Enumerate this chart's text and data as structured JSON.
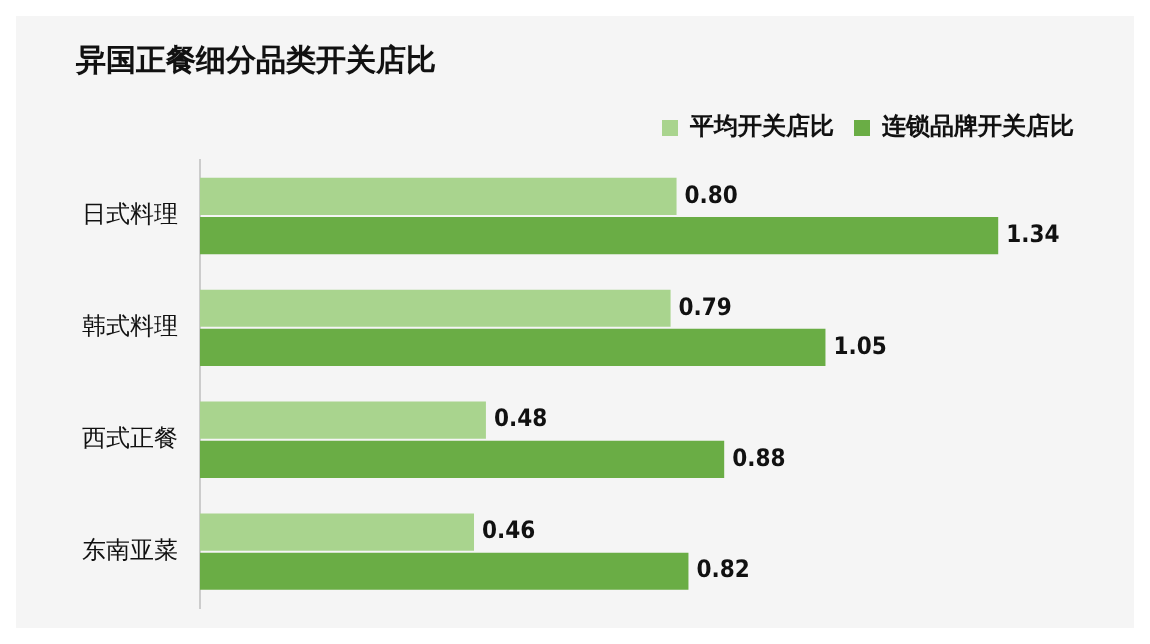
{
  "chart_data": {
    "type": "bar",
    "orientation": "horizontal",
    "title": "异国正餐细分品类开关店比",
    "categories": [
      "日式料理",
      "韩式料理",
      "西式正餐",
      "东南亚菜"
    ],
    "series": [
      {
        "name": "平均开关店比",
        "color": "#a9d48e",
        "values": [
          0.8,
          0.79,
          0.48,
          0.46
        ],
        "value_labels": [
          "0.80",
          "0.79",
          "0.48",
          "0.46"
        ]
      },
      {
        "name": "连锁品牌开关店比",
        "color": "#6aad45",
        "values": [
          1.34,
          1.05,
          0.88,
          0.82
        ],
        "value_labels": [
          "1.34",
          "1.05",
          "0.88",
          "0.82"
        ]
      }
    ],
    "legend": "top right"
  }
}
